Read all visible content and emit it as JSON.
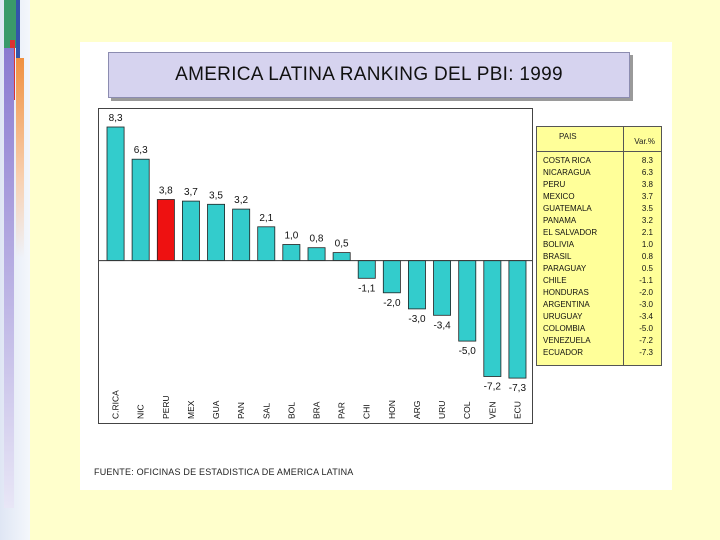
{
  "colors": {
    "bar": "#33cccc",
    "highlight": "#ee1111",
    "table_bg": "#ffff99",
    "title_bg": "#d6d3ef"
  },
  "chart_data": {
    "type": "bar",
    "title": "AMERICA LATINA RANKING DEL PBI: 1999",
    "categories": [
      "C.RICA",
      "NIC",
      "PERU",
      "MEX",
      "GUA",
      "PAN",
      "SAL",
      "BOL",
      "BRA",
      "PAR",
      "CHI",
      "HON",
      "ARG",
      "URU",
      "COL",
      "VEN",
      "ECU"
    ],
    "values": [
      8.3,
      6.3,
      3.8,
      3.7,
      3.5,
      3.2,
      2.1,
      1.0,
      0.8,
      0.5,
      -1.1,
      -2.0,
      -3.0,
      -3.4,
      -5.0,
      -7.2,
      -7.3
    ],
    "value_labels": [
      "8,3",
      "6,3",
      "3,8",
      "3,7",
      "3,5",
      "3,2",
      "2,1",
      "1,0",
      "0,8",
      "0,5",
      "-1,1",
      "-2,0",
      "-3,0",
      "-3,4",
      "-5,0",
      "-7,2",
      "-7,3"
    ],
    "highlight": "PERU",
    "xlabel": "",
    "ylabel": "",
    "ylim": [
      -8.6,
      8.8
    ],
    "grid": false,
    "legend": "none"
  },
  "table": {
    "header_country": "PAIS",
    "header_var": "Var.%",
    "rows": [
      {
        "country": "COSTA RICA",
        "value": "8.3"
      },
      {
        "country": "NICARAGUA",
        "value": "6.3"
      },
      {
        "country": "PERU",
        "value": "3.8"
      },
      {
        "country": "MEXICO",
        "value": "3.7"
      },
      {
        "country": "GUATEMALA",
        "value": "3.5"
      },
      {
        "country": "PANAMA",
        "value": "3.2"
      },
      {
        "country": "EL SALVADOR",
        "value": "2.1"
      },
      {
        "country": "BOLIVIA",
        "value": "1.0"
      },
      {
        "country": "BRASIL",
        "value": "0.8"
      },
      {
        "country": "PARAGUAY",
        "value": "0.5"
      },
      {
        "country": "CHILE",
        "value": "-1.1"
      },
      {
        "country": "HONDURAS",
        "value": "-2.0"
      },
      {
        "country": "ARGENTINA",
        "value": "-3.0"
      },
      {
        "country": "URUGUAY",
        "value": "-3.4"
      },
      {
        "country": "COLOMBIA",
        "value": "-5.0"
      },
      {
        "country": "VENEZUELA",
        "value": "-7.2"
      },
      {
        "country": "ECUADOR",
        "value": "-7.3"
      }
    ]
  },
  "source": "FUENTE: OFICINAS DE ESTADISTICA DE AMERICA LATINA"
}
